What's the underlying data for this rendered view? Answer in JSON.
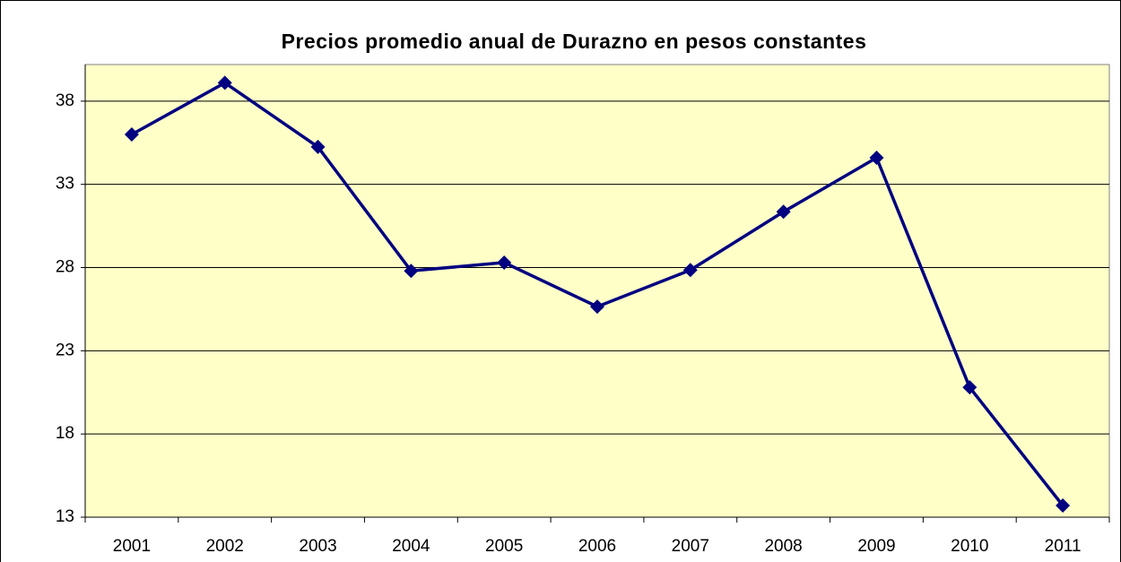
{
  "chart_data": {
    "type": "line",
    "title": "Precios promedio anual de Durazno en pesos constantes",
    "categories": [
      "2001",
      "2002",
      "2003",
      "2004",
      "2005",
      "2006",
      "2007",
      "2008",
      "2009",
      "2010",
      "2011"
    ],
    "series": [
      {
        "name": "Durazno",
        "color": "#000080",
        "values": [
          36.0,
          39.1,
          35.25,
          27.8,
          28.3,
          25.65,
          27.85,
          31.35,
          34.6,
          20.8,
          13.7
        ]
      }
    ],
    "ylim": [
      13,
      40.2
    ],
    "yticks": [
      13,
      18,
      23,
      28,
      33,
      38
    ],
    "grid": true
  }
}
